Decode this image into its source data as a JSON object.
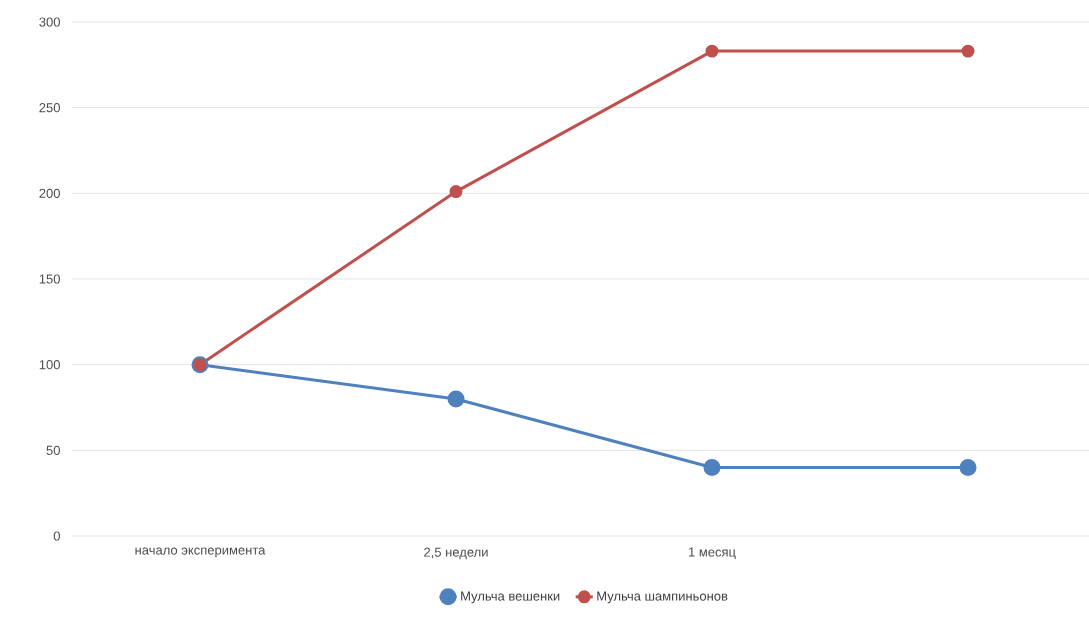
{
  "chart_data": {
    "type": "line",
    "categories": [
      "начало эксперимента",
      "2,5 недели",
      "1 месяц",
      null
    ],
    "series": [
      {
        "name": "Мульча вешенки",
        "color": "#4f81bd",
        "values": [
          100,
          80,
          40,
          40
        ]
      },
      {
        "name": "Мульча шампиньонов",
        "color": "#c0504d",
        "values": [
          100,
          201,
          283,
          283
        ]
      }
    ],
    "ylim": [
      0,
      300
    ],
    "yticks": [
      0,
      50,
      100,
      150,
      200,
      250,
      300
    ],
    "grid": "y",
    "legend": "bottom",
    "marker": "circle",
    "line_style": "solid"
  }
}
